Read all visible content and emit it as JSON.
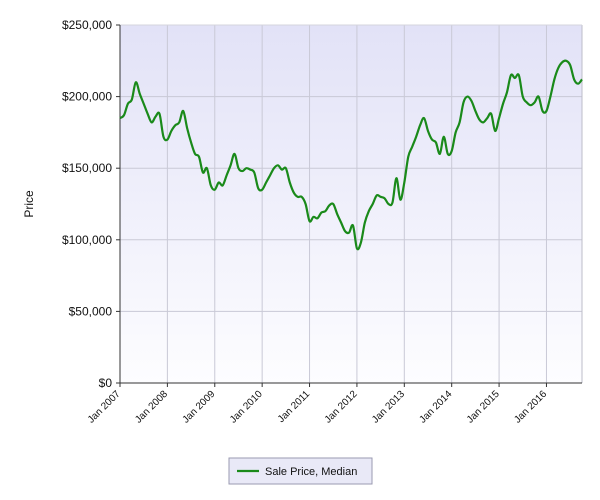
{
  "chart_data": {
    "type": "line",
    "title": "",
    "xlabel": "",
    "ylabel": "Price",
    "ylim": [
      0,
      250000
    ],
    "y_ticks": [
      0,
      50000,
      100000,
      150000,
      200000,
      250000
    ],
    "y_tick_labels": [
      "$0",
      "$50,000",
      "$100,000",
      "$150,000",
      "$200,000",
      "$250,000"
    ],
    "x_tick_labels": [
      "Jan 2007",
      "Jan 2008",
      "Jan 2009",
      "Jan 2010",
      "Jan 2011",
      "Jan 2012",
      "Jan 2013",
      "Jan 2014",
      "Jan 2015",
      "Jan 2016"
    ],
    "xlim": [
      "2007-01",
      "2016-10"
    ],
    "grid": true,
    "legend_position": "bottom-center",
    "series": [
      {
        "name": "Sale Price, Median",
        "color": "#1a8a1a",
        "x": [
          "2007-01",
          "2007-02",
          "2007-03",
          "2007-04",
          "2007-05",
          "2007-06",
          "2007-07",
          "2007-08",
          "2007-09",
          "2007-10",
          "2007-11",
          "2007-12",
          "2008-01",
          "2008-02",
          "2008-03",
          "2008-04",
          "2008-05",
          "2008-06",
          "2008-07",
          "2008-08",
          "2008-09",
          "2008-10",
          "2008-11",
          "2008-12",
          "2009-01",
          "2009-02",
          "2009-03",
          "2009-04",
          "2009-05",
          "2009-06",
          "2009-07",
          "2009-08",
          "2009-09",
          "2009-10",
          "2009-11",
          "2009-12",
          "2010-01",
          "2010-02",
          "2010-03",
          "2010-04",
          "2010-05",
          "2010-06",
          "2010-07",
          "2010-08",
          "2010-09",
          "2010-10",
          "2010-11",
          "2010-12",
          "2011-01",
          "2011-02",
          "2011-03",
          "2011-04",
          "2011-05",
          "2011-06",
          "2011-07",
          "2011-08",
          "2011-09",
          "2011-10",
          "2011-11",
          "2011-12",
          "2012-01",
          "2012-02",
          "2012-03",
          "2012-04",
          "2012-05",
          "2012-06",
          "2012-07",
          "2012-08",
          "2012-09",
          "2012-10",
          "2012-11",
          "2012-12",
          "2013-01",
          "2013-02",
          "2013-03",
          "2013-04",
          "2013-05",
          "2013-06",
          "2013-07",
          "2013-08",
          "2013-09",
          "2013-10",
          "2013-11",
          "2013-12",
          "2014-01",
          "2014-02",
          "2014-03",
          "2014-04",
          "2014-05",
          "2014-06",
          "2014-07",
          "2014-08",
          "2014-09",
          "2014-10",
          "2014-11",
          "2014-12",
          "2015-01",
          "2015-02",
          "2015-03",
          "2015-04",
          "2015-05",
          "2015-06",
          "2015-07",
          "2015-08",
          "2015-09",
          "2015-10",
          "2015-11",
          "2015-12",
          "2016-01",
          "2016-02",
          "2016-03",
          "2016-04",
          "2016-05",
          "2016-06",
          "2016-07",
          "2016-08",
          "2016-09",
          "2016-10"
        ],
        "values": [
          185000,
          187000,
          195000,
          198000,
          210000,
          202000,
          195000,
          188000,
          182000,
          186000,
          188000,
          172000,
          170000,
          176000,
          180000,
          182000,
          190000,
          178000,
          168000,
          160000,
          158000,
          147000,
          150000,
          138000,
          135000,
          140000,
          138000,
          145000,
          152000,
          160000,
          150000,
          148000,
          150000,
          149000,
          147000,
          136000,
          135000,
          140000,
          145000,
          150000,
          152000,
          149000,
          150000,
          140000,
          133000,
          130000,
          130000,
          125000,
          113000,
          116000,
          115000,
          119000,
          120000,
          124000,
          125000,
          118000,
          112000,
          106000,
          105000,
          110000,
          94000,
          98000,
          112000,
          120000,
          125000,
          131000,
          130000,
          129000,
          125000,
          126000,
          143000,
          128000,
          140000,
          158000,
          165000,
          172000,
          180000,
          185000,
          176000,
          170000,
          168000,
          160000,
          172000,
          160000,
          162000,
          175000,
          182000,
          196000,
          200000,
          197000,
          190000,
          184000,
          182000,
          185000,
          188000,
          176000,
          185000,
          195000,
          203000,
          215000,
          213000,
          215000,
          200000,
          196000,
          194000,
          196000,
          200000,
          190000,
          190000,
          200000,
          212000,
          220000,
          224000,
          225000,
          222000,
          212000,
          209000,
          212000
        ]
      }
    ]
  }
}
